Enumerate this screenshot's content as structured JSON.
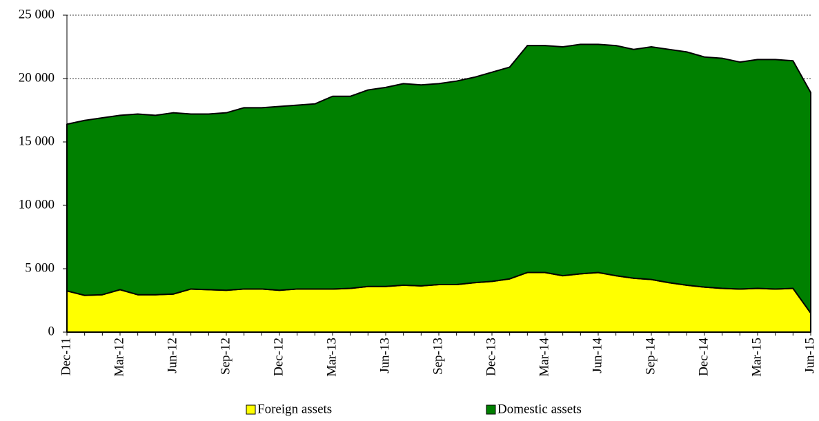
{
  "chart_data": {
    "type": "stacked_area",
    "categories": [
      "Dec-11",
      null,
      null,
      "Mar-12",
      null,
      null,
      "Jun-12",
      null,
      null,
      "Sep-12",
      null,
      null,
      "Dec-12",
      null,
      null,
      "Mar-13",
      null,
      null,
      "Jun-13",
      null,
      null,
      "Sep-13",
      null,
      null,
      "Dec-13",
      null,
      null,
      "Mar-14",
      null,
      null,
      "Jun-14",
      null,
      null,
      "Sep-14",
      null,
      null,
      "Dec-14",
      null,
      null,
      "Mar-15",
      null,
      null,
      "Jun-15"
    ],
    "series": [
      {
        "name": "Foreign assets",
        "color": "#ffff00",
        "values": [
          3250,
          2900,
          2950,
          3350,
          2950,
          2950,
          3000,
          3400,
          3350,
          3300,
          3400,
          3400,
          3300,
          3400,
          3400,
          3400,
          3450,
          3600,
          3600,
          3700,
          3650,
          3750,
          3750,
          3900,
          4000,
          4200,
          4700,
          4700,
          4450,
          4600,
          4700,
          4450,
          4250,
          4150,
          3900,
          3700,
          3550,
          3450,
          3400,
          3450,
          3400,
          3450,
          1500
        ]
      },
      {
        "name": "Domestic assets",
        "color": "#008000",
        "values": [
          13150,
          13800,
          13950,
          13750,
          14250,
          14150,
          14300,
          13800,
          13850,
          14000,
          14300,
          14300,
          14500,
          14500,
          14600,
          15200,
          15150,
          15500,
          15700,
          15900,
          15850,
          15850,
          16050,
          16200,
          16500,
          16700,
          17900,
          17900,
          18050,
          18100,
          18000,
          18150,
          18050,
          18350,
          18400,
          18400,
          18150,
          18150,
          17900,
          18050,
          18100,
          17950,
          17400
        ]
      }
    ],
    "ylim": [
      0,
      25000
    ],
    "yticks": [
      0,
      {
        "value": 5000,
        "label": "5 000"
      },
      {
        "value": 10000,
        "label": "10 000"
      },
      {
        "value": 15000,
        "label": "15 000"
      },
      {
        "value": 20000,
        "label": "20 000"
      },
      {
        "value": 25000,
        "label": "25 000"
      }
    ],
    "grid": true,
    "legend": "bottom"
  }
}
